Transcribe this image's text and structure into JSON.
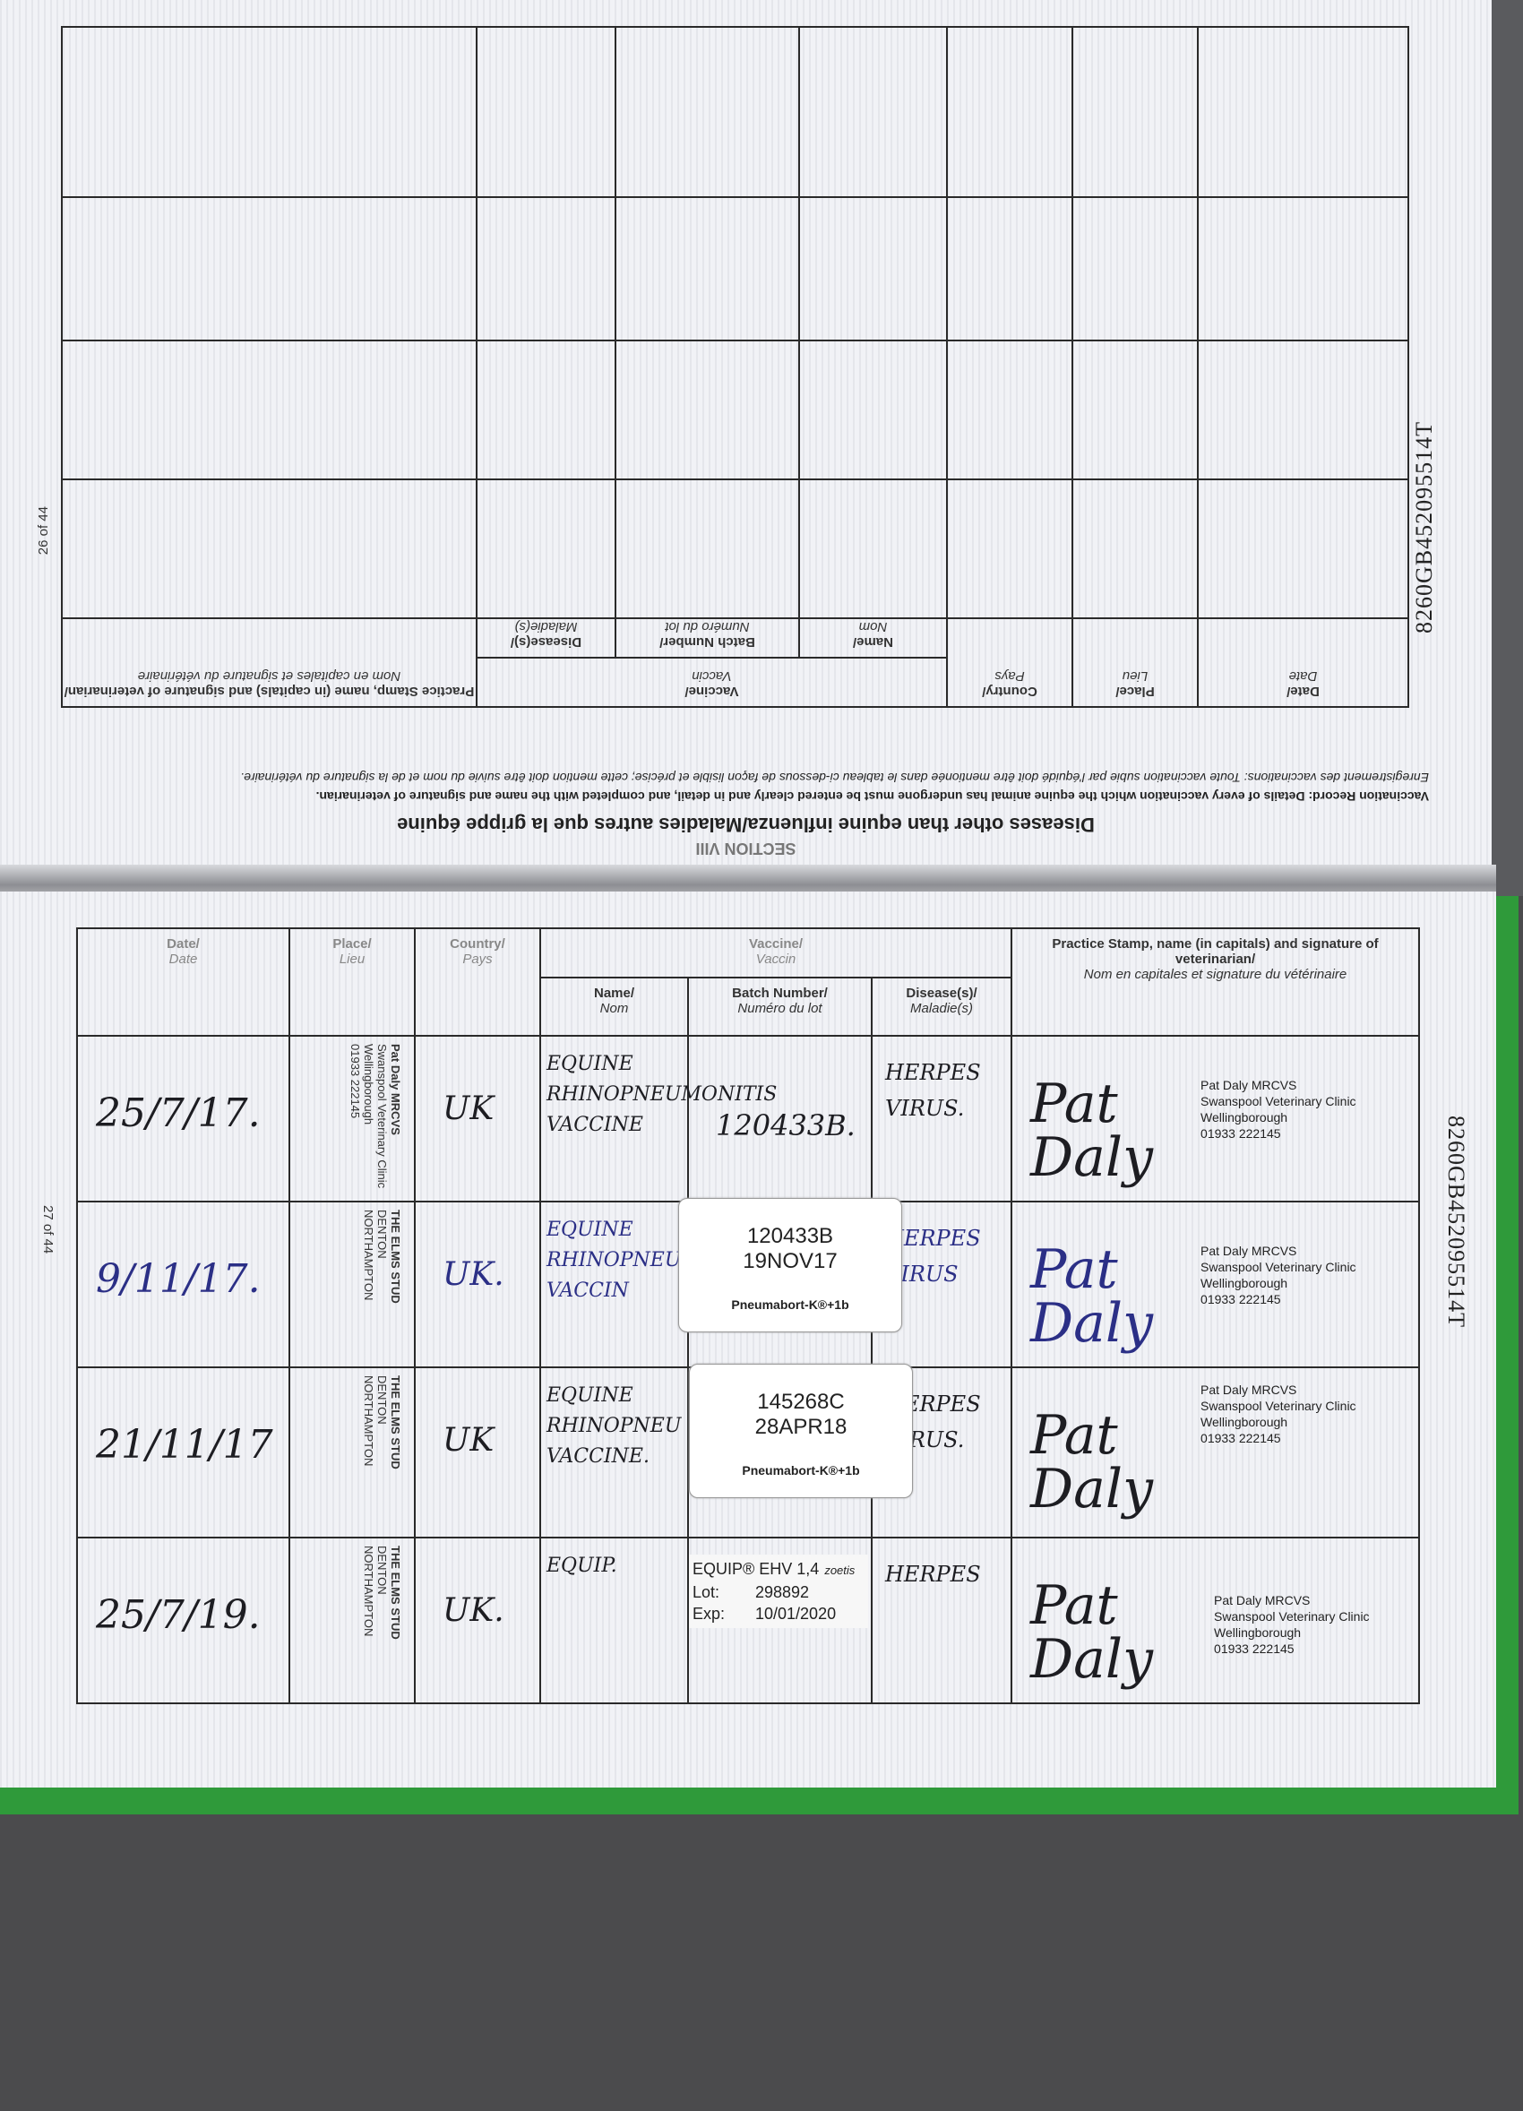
{
  "upper_page": {
    "section": "SECTION VIII",
    "title": "Diseases other than equine influenza/Maladies autres que la grippe équine",
    "instruction_en": "Vaccination Record: Details of every vaccination which the equine animal has undergone must be entered clearly and in detail, and completed with the name and signature of veterinarian.",
    "instruction_fr": "Enregistrement des vaccinations: Toute vaccination subie par l'équidé doit être mentionée dans le tableau ci-dessous de façon lisible et précise; cette mention doit être suivie du nom et de la signature du vétérinaire.",
    "page_number": "26 of 44",
    "id_number": "8260GB452095514T"
  },
  "headers": {
    "date": "Date/",
    "date_fr": "Date",
    "place": "Place/",
    "place_fr": "Lieu",
    "country": "Country/",
    "country_fr": "Pays",
    "vaccine": "Vaccine/",
    "vaccine_fr": "Vaccin",
    "name": "Name/",
    "name_fr": "Nom",
    "batch": "Batch Number/",
    "batch_fr": "Numéro du lot",
    "disease": "Disease(s)/",
    "disease_fr": "Maladie(s)",
    "stamp": "Practice Stamp, name (in capitals) and signature of veterinarian/",
    "stamp_fr": "Nom en capitales et signature du vétérinaire"
  },
  "lower_page": {
    "page_number": "27 of 44",
    "id_number": "8260GB452095514T",
    "rows": [
      {
        "date": "25/7/17.",
        "place": [
          "Pat Daly MRCVS",
          "Swanspool Veterinary Clinic",
          "Wellingborough",
          "01933 222145"
        ],
        "country": "UK",
        "name": "EQUINE RHINOPNEUMONITIS VACCINE",
        "batch": "120433B.",
        "disease": "HERPES VIRUS.",
        "signature": "Pat Daly",
        "stamp": [
          "Pat Daly MRCVS",
          "Swanspool Veterinary Clinic",
          "Wellingborough",
          "01933 222145"
        ]
      },
      {
        "date": "9/11/17.",
        "place": [
          "THE ELMS STUD",
          "DENTON",
          "NORTHAMPTON"
        ],
        "country": "UK.",
        "name": "EQUINE RHINOPNEU VACCIN",
        "sticker": {
          "batch": "120433B",
          "expiry": "19NOV17",
          "product": "Pneumabort-K®+1b"
        },
        "disease": "HERPES VIRUS",
        "signature": "Pat Daly",
        "stamp": [
          "Pat Daly MRCVS",
          "Swanspool Veterinary Clinic",
          "Wellingborough",
          "01933 222145"
        ]
      },
      {
        "date": "21/11/17",
        "place": [
          "THE ELMS STUD",
          "DENTON",
          "NORTHAMPTON"
        ],
        "country": "UK",
        "name": "EQUINE RHINOPNEU VACCINE.",
        "sticker": {
          "batch": "145268C",
          "expiry": "28APR18",
          "product": "Pneumabort-K®+1b"
        },
        "disease": "HERPES VIRUS.",
        "signature": "Pat Daly",
        "stamp": [
          "Pat Daly MRCVS",
          "Swanspool Veterinary Clinic",
          "Wellingborough",
          "01933 222145"
        ]
      },
      {
        "date": "25/7/19.",
        "place": [
          "THE ELMS STUD",
          "DENTON",
          "NORTHAMPTON"
        ],
        "country": "UK.",
        "name": "EQUIP.",
        "label": {
          "product": "EQUIP® EHV 1,4",
          "brand": "zoetis",
          "lot_label": "Lot:",
          "lot": "298892",
          "exp_label": "Exp:",
          "exp": "10/01/2020"
        },
        "disease": "HERPES",
        "signature": "Pat Daly",
        "stamp": [
          "Pat Daly MRCVS",
          "Swanspool Veterinary Clinic",
          "Wellingborough",
          "01933 222145"
        ]
      }
    ]
  },
  "colors": {
    "cover": "#2f9a3a",
    "paper": "#f1f2f6",
    "ink_blue": "#2b2f86",
    "background": "#4b4b4d"
  }
}
